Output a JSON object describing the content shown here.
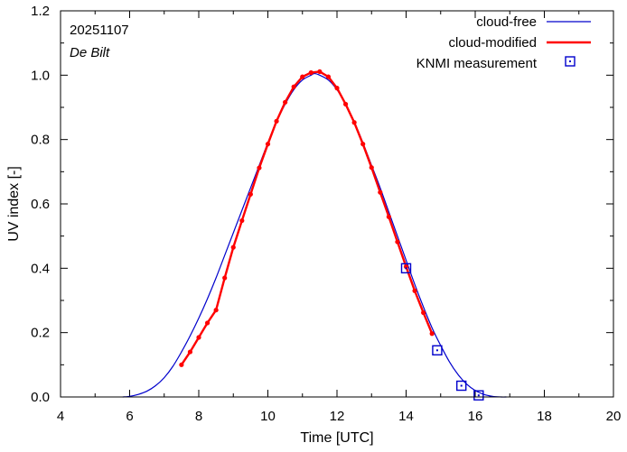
{
  "chart_data": {
    "type": "line",
    "title": "",
    "xlabel": "Time  [UTC]",
    "ylabel": "UV index  [-]",
    "xlim": [
      4,
      20
    ],
    "ylim": [
      0,
      1.2
    ],
    "xticks": [
      4,
      6,
      8,
      10,
      12,
      14,
      16,
      18,
      20
    ],
    "yticks": [
      0.0,
      0.2,
      0.4,
      0.6,
      0.8,
      1.0,
      1.2
    ],
    "ytick_labels": [
      "0.0",
      "0.2",
      "0.4",
      "0.6",
      "0.8",
      "1.0",
      "1.2"
    ],
    "xminor_step": 1,
    "yminor_step": 0.1,
    "grid": false,
    "legend_position": "top-right",
    "annotations": {
      "date": "20251107",
      "location": "De Bilt"
    },
    "series": [
      {
        "name": "cloud-free",
        "kind": "line",
        "color": "#0000cc",
        "x": [
          5.8,
          6.0,
          6.25,
          6.5,
          6.75,
          7.0,
          7.25,
          7.5,
          7.75,
          8.0,
          8.25,
          8.5,
          8.75,
          9.0,
          9.25,
          9.5,
          9.75,
          10.0,
          10.25,
          10.5,
          10.75,
          11.0,
          11.25,
          11.35,
          11.5,
          11.75,
          12.0,
          12.25,
          12.5,
          12.75,
          13.0,
          13.25,
          13.5,
          13.75,
          14.0,
          14.25,
          14.5,
          14.75,
          15.0,
          15.25,
          15.5,
          15.75,
          16.0,
          16.25,
          16.5,
          16.75,
          16.9
        ],
        "values": [
          0.0,
          0.002,
          0.008,
          0.018,
          0.035,
          0.06,
          0.095,
          0.14,
          0.19,
          0.245,
          0.305,
          0.37,
          0.44,
          0.51,
          0.58,
          0.65,
          0.72,
          0.79,
          0.855,
          0.91,
          0.955,
          0.985,
          1.0,
          1.005,
          1.0,
          0.985,
          0.955,
          0.91,
          0.855,
          0.79,
          0.72,
          0.65,
          0.575,
          0.5,
          0.425,
          0.35,
          0.28,
          0.215,
          0.16,
          0.11,
          0.07,
          0.04,
          0.02,
          0.008,
          0.002,
          0.0,
          0.0
        ]
      },
      {
        "name": "cloud-modified",
        "kind": "line+points",
        "color": "#ff0000",
        "x": [
          7.5,
          7.75,
          8.0,
          8.25,
          8.5,
          8.75,
          9.0,
          9.25,
          9.5,
          9.75,
          10.0,
          10.25,
          10.5,
          10.75,
          11.0,
          11.25,
          11.5,
          11.75,
          12.0,
          12.25,
          12.5,
          12.75,
          13.0,
          13.25,
          13.5,
          13.75,
          14.0,
          14.25,
          14.5,
          14.75
        ],
        "values": [
          0.1,
          0.14,
          0.185,
          0.23,
          0.27,
          0.37,
          0.465,
          0.548,
          0.63,
          0.712,
          0.786,
          0.857,
          0.916,
          0.964,
          0.995,
          1.008,
          1.011,
          0.995,
          0.96,
          0.91,
          0.853,
          0.786,
          0.713,
          0.636,
          0.56,
          0.482,
          0.405,
          0.33,
          0.262,
          0.197
        ]
      },
      {
        "name": "KNMI measurement",
        "kind": "points",
        "color": "#0000cc",
        "x": [
          14.0,
          14.9,
          15.6,
          16.1
        ],
        "values": [
          0.4,
          0.145,
          0.035,
          0.005
        ]
      }
    ]
  }
}
